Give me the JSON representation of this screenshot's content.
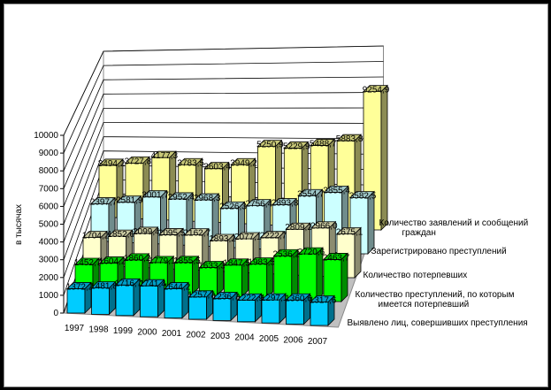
{
  "chart_data": {
    "type": "bar",
    "variant": "3d-clustered-depth",
    "title": "",
    "ylabel": "в тысячах",
    "xlabel": "",
    "ylim": [
      0,
      10000
    ],
    "yticks": [
      0,
      1000,
      2000,
      3000,
      4000,
      5000,
      6000,
      7000,
      8000,
      9000,
      10000
    ],
    "grid": true,
    "legend": "right",
    "categories": [
      "1997",
      "1998",
      "1999",
      "2000",
      "2001",
      "2002",
      "2003",
      "2004",
      "2005",
      "2006",
      "2007"
    ],
    "series": [
      {
        "name": "Выявлено лиц, совершивших преступления",
        "color": "#00ccff",
        "values": [
          1372.2,
          1481.8,
          1716.7,
          1741.4,
          1644.2,
          1257.7,
          1236.7,
          1222.9,
          1297.1,
          1360.6,
          1317.6
        ],
        "labels": [
          "1372,2",
          "1481,8",
          "1716,7",
          "1741,4",
          "1644,2",
          "1257,7",
          "1236,7",
          "1222,9",
          "1297,1",
          "1360,6",
          "1317,6"
        ]
      },
      {
        "name": "Количество преступлений, по которым имеется потерпевший",
        "color": "#00ff00",
        "values": [
          1452.7,
          1604.2,
          1860.2,
          1779.1,
          1855.5,
          1633.3,
          1847.5,
          1983.5,
          2536.2,
          2720.6,
          2463.7
        ],
        "labels": [
          "1452,7",
          "1604,2",
          "1860,2",
          "1779,1",
          "1855,5",
          "1633,3",
          "1847,5",
          "1983,5",
          "2536,2",
          "2720,6",
          "2463,7"
        ]
      },
      {
        "name": "Количество потерпевших",
        "color": "#ffffcc",
        "values": [
          1704.2,
          1852.6,
          2099.4,
          2095.5,
          2162.7,
          1893.2,
          2077.1,
          2222.7,
          2809.2,
          2966.0,
          2675.1
        ],
        "labels": [
          "1704,2",
          "1852,6",
          "2099,4",
          "2095,5",
          "2162,7",
          "1893,2",
          "2077,1",
          "2222,7",
          "2809,2",
          "2966,0",
          "2675,1"
        ]
      },
      {
        "name": "Зарегистрировано преступлений",
        "color": "#ccffff",
        "values": [
          2397.7,
          2581.9,
          3001.7,
          2952.4,
          2968.3,
          2526.3,
          2756.4,
          2893.8,
          3554.7,
          3855.4,
          3582.5
        ],
        "labels": [
          "2397,7",
          "2581,9",
          "3001,7",
          "2952,4",
          "2968,3",
          "2526,3",
          "2756,4",
          "2893,8",
          "3554,7",
          "3855,4",
          "3582,5"
        ]
      },
      {
        "name": "Количество заявлений и сообщений граждан",
        "color": "#ffff99",
        "values": [
          3494.2,
          3727.8,
          4177.3,
          3783.5,
          3603.4,
          3949.2,
          5250.9,
          5229.9,
          5488.7,
          5883.8,
          9254.9
        ],
        "labels": [
          "3494,2",
          "3727,8",
          "4177,3",
          "3783,5",
          "3603,4",
          "3949,2",
          "5250,9",
          "5229,9",
          "5488,7",
          "5883,8",
          "9254,9"
        ]
      }
    ]
  }
}
